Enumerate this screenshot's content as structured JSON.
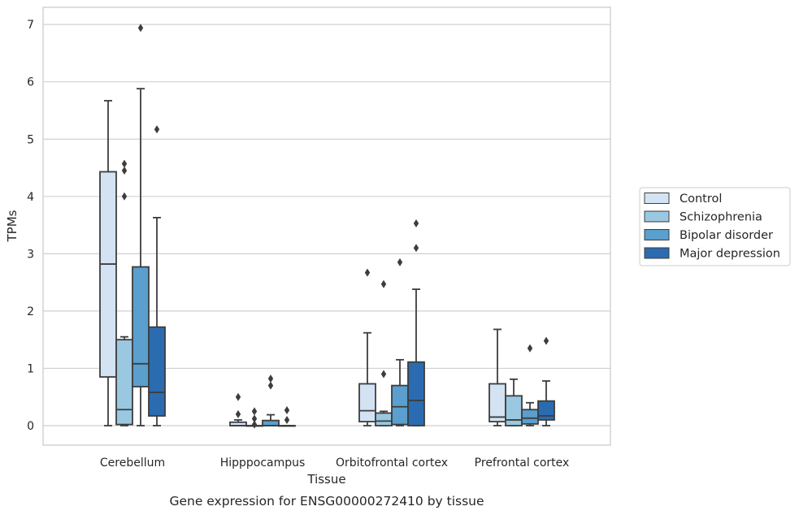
{
  "chart_data": {
    "type": "box",
    "title": "",
    "xlabel": "Tissue",
    "ylabel": "TPMs",
    "caption": "Gene expression for ENSG00000272410 by tissue",
    "ylim": [
      -0.33,
      7.3
    ],
    "yticks": [
      0,
      1,
      2,
      3,
      4,
      5,
      6,
      7
    ],
    "grid": true,
    "legend_position": "right",
    "categories": [
      "Cerebellum",
      "Hipppocampus",
      "Orbitofrontal cortex",
      "Prefrontal cortex"
    ],
    "series": [
      {
        "name": "Control",
        "color": "#d3e3f3",
        "boxes": [
          {
            "whislo": 0.0,
            "q1": 0.85,
            "med": 2.82,
            "q3": 4.43,
            "whishi": 5.67,
            "fliers": []
          },
          {
            "whislo": 0.0,
            "q1": 0.0,
            "med": 0.0,
            "q3": 0.06,
            "whishi": 0.1,
            "fliers": [
              0.2,
              0.5
            ]
          },
          {
            "whislo": 0.0,
            "q1": 0.07,
            "med": 0.26,
            "q3": 0.73,
            "whishi": 1.62,
            "fliers": [
              2.67
            ]
          },
          {
            "whislo": 0.0,
            "q1": 0.07,
            "med": 0.15,
            "q3": 0.73,
            "whishi": 1.68,
            "fliers": []
          }
        ]
      },
      {
        "name": "Schizophrenia",
        "color": "#9ac8e0",
        "boxes": [
          {
            "whislo": 0.0,
            "q1": 0.02,
            "med": 0.28,
            "q3": 1.5,
            "whishi": 1.55,
            "fliers": [
              4.0,
              4.45,
              4.57
            ]
          },
          {
            "whislo": 0.0,
            "q1": 0.0,
            "med": 0.0,
            "q3": 0.0,
            "whishi": 0.0,
            "fliers": [
              0.02,
              0.12,
              0.25
            ]
          },
          {
            "whislo": 0.0,
            "q1": 0.0,
            "med": 0.08,
            "q3": 0.22,
            "whishi": 0.25,
            "fliers": [
              0.9,
              2.47
            ]
          },
          {
            "whislo": 0.0,
            "q1": 0.0,
            "med": 0.1,
            "q3": 0.52,
            "whishi": 0.81,
            "fliers": []
          }
        ]
      },
      {
        "name": "Bipolar disorder",
        "color": "#5a9fcd",
        "boxes": [
          {
            "whislo": 0.0,
            "q1": 0.68,
            "med": 1.08,
            "q3": 2.77,
            "whishi": 5.88,
            "fliers": [
              6.94
            ]
          },
          {
            "whislo": 0.0,
            "q1": 0.0,
            "med": 0.0,
            "q3": 0.09,
            "whishi": 0.19,
            "fliers": [
              0.7,
              0.82
            ]
          },
          {
            "whislo": 0.0,
            "q1": 0.02,
            "med": 0.33,
            "q3": 0.7,
            "whishi": 1.15,
            "fliers": [
              2.85
            ]
          },
          {
            "whislo": 0.0,
            "q1": 0.03,
            "med": 0.13,
            "q3": 0.28,
            "whishi": 0.4,
            "fliers": [
              1.35
            ]
          }
        ]
      },
      {
        "name": "Major depression",
        "color": "#2b6cb0",
        "boxes": [
          {
            "whislo": 0.0,
            "q1": 0.17,
            "med": 0.58,
            "q3": 1.72,
            "whishi": 3.63,
            "fliers": [
              5.17
            ]
          },
          {
            "whislo": 0.0,
            "q1": 0.0,
            "med": 0.0,
            "q3": 0.0,
            "whishi": 0.0,
            "fliers": [
              0.1,
              0.27
            ]
          },
          {
            "whislo": 0.0,
            "q1": 0.0,
            "med": 0.44,
            "q3": 1.11,
            "whishi": 2.38,
            "fliers": [
              3.1,
              3.53
            ]
          },
          {
            "whislo": 0.0,
            "q1": 0.1,
            "med": 0.17,
            "q3": 0.43,
            "whishi": 0.78,
            "fliers": [
              1.48
            ]
          }
        ]
      }
    ]
  }
}
